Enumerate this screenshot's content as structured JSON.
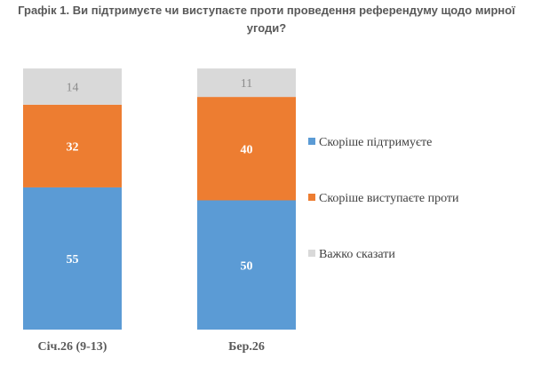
{
  "chart_data": {
    "type": "bar",
    "stacked": true,
    "title_lines": [
      "Графік 1. Ви підтримуєте чи виступаєте проти проведення референдуму щодо мирної",
      "угоди?"
    ],
    "categories": [
      "Січ.26 (9-13)",
      "Бер.26"
    ],
    "series": [
      {
        "name": "Скоріше підтримуєте",
        "values": [
          55,
          50
        ],
        "color": "#5B9BD5",
        "label_color": "#ffffff"
      },
      {
        "name": "Скоріше виступаєте проти",
        "values": [
          32,
          40
        ],
        "color": "#ED7D31",
        "label_color": "#ffffff"
      },
      {
        "name": "Важко сказати",
        "values": [
          14,
          11
        ],
        "color": "#D9D9D9",
        "label_color": "#8c8c8c"
      }
    ],
    "legend_position": "right",
    "grid": false
  }
}
